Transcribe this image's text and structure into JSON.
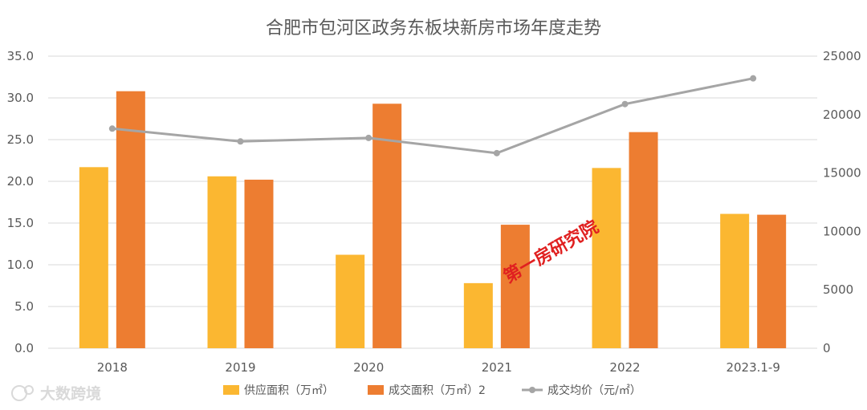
{
  "chart_data": {
    "type": "bar",
    "title": "合肥市包河区政务东板块新房市场年度走势",
    "categories": [
      "2018",
      "2019",
      "2020",
      "2021",
      "2022",
      "2023.1-9"
    ],
    "series": [
      {
        "name": "供应面积（万㎡）",
        "type": "bar",
        "axis": "left",
        "color": "#FBB731",
        "values": [
          21.7,
          20.6,
          11.2,
          7.8,
          21.6,
          16.1
        ]
      },
      {
        "name": "成交面积（万㎡）2",
        "type": "bar",
        "axis": "left",
        "color": "#ED7D31",
        "values": [
          30.8,
          20.2,
          29.3,
          14.8,
          25.9,
          16.0
        ]
      },
      {
        "name": "成交均价（元/㎡）",
        "type": "line",
        "axis": "right",
        "color": "#A5A5A5",
        "values": [
          18800,
          17700,
          18000,
          16700,
          20900,
          23100
        ]
      }
    ],
    "ylim_left": [
      0,
      35
    ],
    "yticks_left": [
      "35.0",
      "30.0",
      "25.0",
      "20.0",
      "15.0",
      "10.0",
      "5.0",
      "0.0"
    ],
    "ylim_right": [
      0,
      25000
    ],
    "yticks_right": [
      "25000",
      "20000",
      "15000",
      "10000",
      "5000",
      "0"
    ],
    "grid": true,
    "legend_position": "bottom"
  },
  "watermark_text": "第一房研究院",
  "brand_text": "大数跨境"
}
